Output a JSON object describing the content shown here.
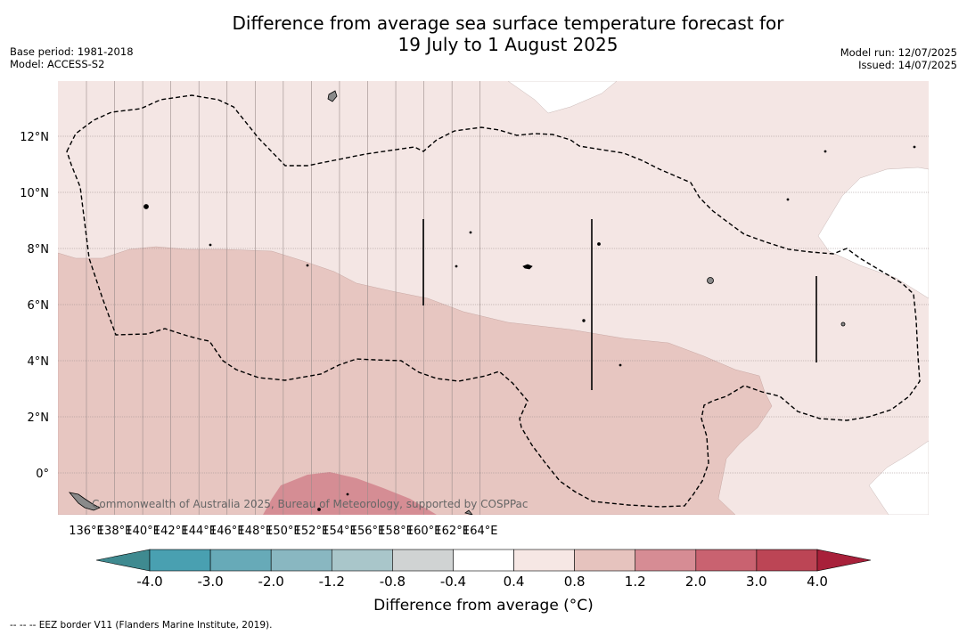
{
  "title": {
    "line1": "Difference from average sea surface temperature forecast for",
    "line2": "19 July to 1 August 2025"
  },
  "meta_left": {
    "base_period": "Base period: 1981-2018",
    "model": "Model: ACCESS-S2"
  },
  "meta_right": {
    "model_run": "Model run: 12/07/2025",
    "issued": "Issued: 14/07/2025"
  },
  "map": {
    "lon_labels": [
      "136°E",
      "138°E",
      "140°E",
      "142°E",
      "144°E",
      "146°E",
      "148°E",
      "150°E",
      "152°E",
      "154°E",
      "156°E",
      "158°E",
      "160°E",
      "162°E",
      "164°E"
    ],
    "lat_labels": [
      "12°N",
      "10°N",
      "8°N",
      "6°N",
      "4°N",
      "2°N",
      "0°"
    ],
    "copyright": "Commonwealth of Australia 2025, Bureau of Meteorology, supported by COSPPac",
    "colors": {
      "light_pink": "#f4e6e4",
      "pink": "#e7c6c1",
      "rose": "#d58d94",
      "eez_line": "#000000",
      "land": "#8a8a8a"
    }
  },
  "colorbar": {
    "ticks": [
      "-4.0",
      "-3.0",
      "-2.0",
      "-1.2",
      "-0.8",
      "-0.4",
      "0.4",
      "0.8",
      "1.2",
      "2.0",
      "3.0",
      "4.0"
    ],
    "colors": [
      "#3f8a90",
      "#49a0b1",
      "#67aab8",
      "#89b7c1",
      "#a9c6ca",
      "#d0d3d3",
      "#ffffff",
      "#f6e7e4",
      "#e6c3be",
      "#d68c94",
      "#c96270",
      "#bc4555",
      "#a8203a"
    ],
    "label": "Difference from average (°C)"
  },
  "footer": {
    "eez_legend": "--  --  -- EEZ border V11 (Flanders Marine Institute, 2019)."
  }
}
